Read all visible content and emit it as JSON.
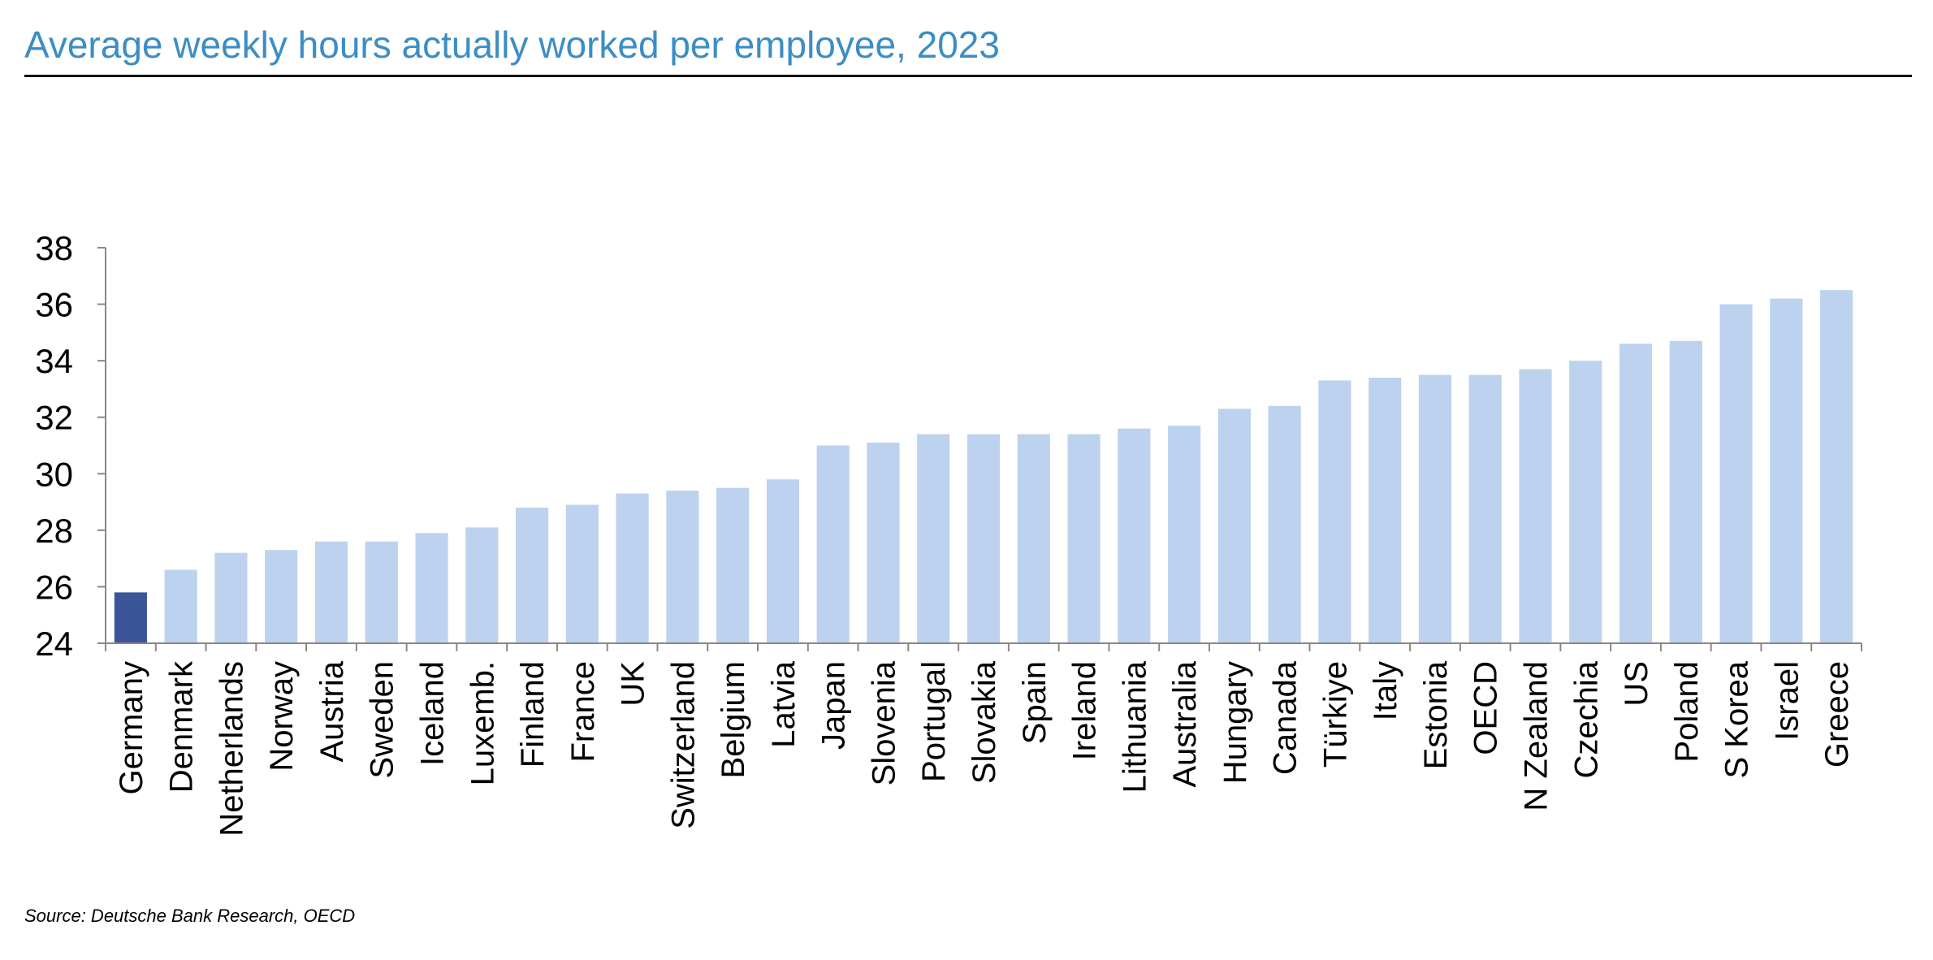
{
  "header": {
    "title": "Average weekly hours actually worked per employee, 2023"
  },
  "footer": {
    "source": "Source: Deutsche Bank Research, OECD"
  },
  "colors": {
    "title": "#3c8dc4",
    "bar": "#bcd2ee",
    "highlight_bar": "#3a5699",
    "axis": "#888888"
  },
  "chart_data": {
    "type": "bar",
    "title": "Average weekly hours actually worked per employee, 2023",
    "xlabel": "",
    "ylabel": "",
    "ylim": [
      24,
      38
    ],
    "yticks": [
      24,
      26,
      28,
      30,
      32,
      34,
      36,
      38
    ],
    "grid": false,
    "legend": "none",
    "highlight": "Germany",
    "categories": [
      "Germany",
      "Denmark",
      "Netherlands",
      "Norway",
      "Austria",
      "Sweden",
      "Iceland",
      "Luxemb.",
      "Finland",
      "France",
      "UK",
      "Switzerland",
      "Belgium",
      "Latvia",
      "Japan",
      "Slovenia",
      "Portugal",
      "Slovakia",
      "Spain",
      "Ireland",
      "Lithuania",
      "Australia",
      "Hungary",
      "Canada",
      "Türkiye",
      "Italy",
      "Estonia",
      "OECD",
      "N Zealand",
      "Czechia",
      "US",
      "Poland",
      "S Korea",
      "Israel",
      "Greece"
    ],
    "values": [
      25.8,
      26.6,
      27.2,
      27.3,
      27.6,
      27.6,
      27.9,
      28.1,
      28.8,
      28.9,
      29.3,
      29.4,
      29.5,
      29.8,
      31.0,
      31.1,
      31.4,
      31.4,
      31.4,
      31.4,
      31.6,
      31.7,
      32.3,
      32.4,
      33.3,
      33.4,
      33.5,
      33.5,
      33.7,
      34.0,
      34.6,
      34.7,
      36.0,
      36.2,
      36.5
    ]
  }
}
